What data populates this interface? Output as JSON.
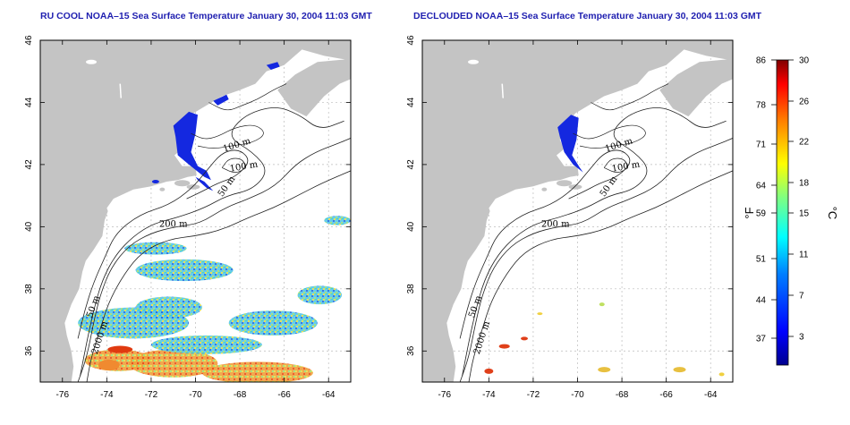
{
  "panels": [
    {
      "id": "left",
      "title": "RU COOL NOAA–15 Sea Surface Temperature January 30, 2004 11:03 GMT",
      "x_ticks": [
        "-76",
        "-74",
        "-72",
        "-70",
        "-68",
        "-66",
        "-64"
      ],
      "y_ticks": [
        "36",
        "38",
        "40",
        "42",
        "44",
        "46"
      ],
      "contour_labels": [
        "100 m",
        "100 m",
        "50 m",
        "200 m",
        "50 m",
        "2000 m"
      ]
    },
    {
      "id": "right",
      "title": "DECLOUDED NOAA–15 Sea Surface Temperature January 30, 2004 11:03 GMT",
      "x_ticks": [
        "-76",
        "-74",
        "-72",
        "-70",
        "-68",
        "-66",
        "-64"
      ],
      "y_ticks": [
        "36",
        "38",
        "40",
        "42",
        "44",
        "46"
      ],
      "contour_labels": [
        "100 m",
        "100 m",
        "50 m",
        "200 m",
        "50 m",
        "2000 m"
      ]
    }
  ],
  "map_extent": {
    "lon": [
      -77,
      -63
    ],
    "lat": [
      35,
      46
    ]
  },
  "colorbar": {
    "fahrenheit_ticks": [
      "86",
      "78",
      "71",
      "64",
      "59",
      "51",
      "44",
      "37"
    ],
    "celsius_ticks": [
      "30",
      "26",
      "22",
      "18",
      "15",
      "11",
      "7",
      "3"
    ],
    "f_unit": "°F",
    "c_unit": "°C",
    "colors": [
      "#00008f",
      "#0000ff",
      "#006fff",
      "#00dfff",
      "#4fffaf",
      "#bfff3f",
      "#ffdf00",
      "#ff7f00",
      "#ff1f00",
      "#8f0000"
    ]
  },
  "colors": {
    "land": "#c4c4c4",
    "title": "#1f1fb0",
    "cold_water": "#1428e0"
  }
}
